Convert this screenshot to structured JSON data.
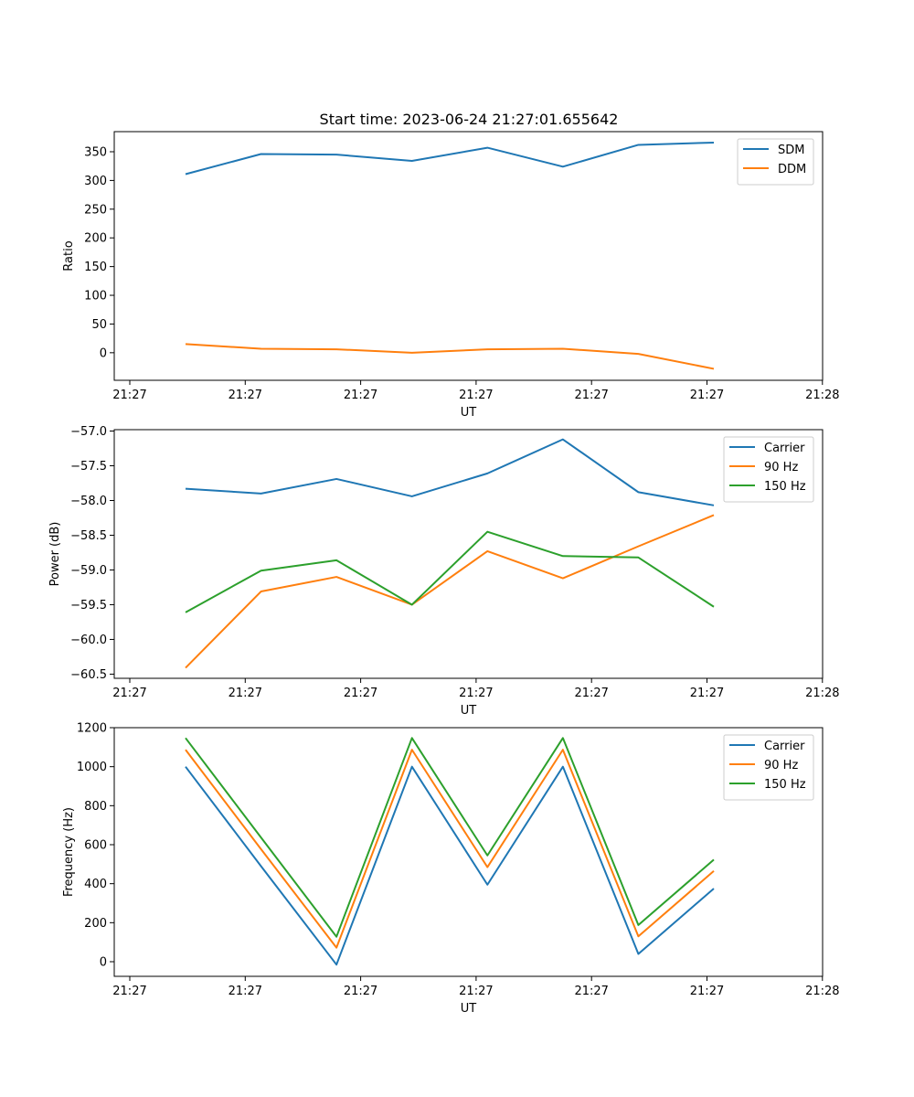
{
  "figure": {
    "title": "Start time: 2023-06-24 21:27:01.655642"
  },
  "colors": {
    "blue": "#1f77b4",
    "orange": "#ff7f0e",
    "green": "#2ca02c"
  },
  "chart_data": [
    {
      "type": "line",
      "title": "Start time: 2023-06-24 21:27:01.655642",
      "xlabel": "UT",
      "ylabel": "Ratio",
      "x_tick_labels": [
        "21:27",
        "21:27",
        "21:27",
        "21:27",
        "21:27",
        "21:27",
        "21:28"
      ],
      "yticks": [
        0,
        50,
        100,
        150,
        200,
        250,
        300,
        350
      ],
      "ylim": [
        -48,
        385
      ],
      "legend": "top-right",
      "x": [
        1,
        2,
        3,
        4,
        5,
        6,
        7,
        8
      ],
      "series": [
        {
          "name": "SDM",
          "color": "#1f77b4",
          "values": [
            311,
            346,
            345,
            334,
            357,
            324,
            362,
            366
          ]
        },
        {
          "name": "DDM",
          "color": "#ff7f0e",
          "values": [
            15,
            7,
            6,
            0,
            6,
            7,
            -2,
            -28
          ]
        }
      ]
    },
    {
      "type": "line",
      "xlabel": "UT",
      "ylabel": "Power (dB)",
      "x_tick_labels": [
        "21:27",
        "21:27",
        "21:27",
        "21:27",
        "21:27",
        "21:27",
        "21:28"
      ],
      "yticks": [
        -60.5,
        -60.0,
        -59.5,
        -59.0,
        -58.5,
        -58.0,
        -57.5,
        -57.0
      ],
      "ytick_labels": [
        "−60.5",
        "−60.0",
        "−59.5",
        "−59.0",
        "−58.5",
        "−58.0",
        "−57.5",
        "−57.0"
      ],
      "ylim": [
        -60.56,
        -56.98
      ],
      "legend": "top-right",
      "x": [
        1,
        2,
        3,
        4,
        5,
        6,
        7,
        8
      ],
      "series": [
        {
          "name": "Carrier",
          "color": "#1f77b4",
          "values": [
            -57.83,
            -57.9,
            -57.69,
            -57.94,
            -57.61,
            -57.12,
            -57.88,
            -58.07
          ]
        },
        {
          "name": "90 Hz",
          "color": "#ff7f0e",
          "values": [
            -60.41,
            -59.31,
            -59.1,
            -59.5,
            -58.73,
            -59.12,
            -58.66,
            -58.21
          ]
        },
        {
          "name": "150 Hz",
          "color": "#2ca02c",
          "values": [
            -59.61,
            -59.01,
            -58.86,
            -59.5,
            -58.45,
            -58.8,
            -58.82,
            -59.53
          ]
        }
      ]
    },
    {
      "type": "line",
      "xlabel": "UT",
      "ylabel": "Frequency (Hz)",
      "x_tick_labels": [
        "21:27",
        "21:27",
        "21:27",
        "21:27",
        "21:27",
        "21:27",
        "21:28"
      ],
      "yticks": [
        0,
        200,
        400,
        600,
        800,
        1000,
        1200
      ],
      "ylim": [
        -75,
        1200
      ],
      "legend": "top-right",
      "x": [
        1,
        2,
        3,
        4,
        5,
        6,
        7,
        8
      ],
      "series": [
        {
          "name": "Carrier",
          "color": "#1f77b4",
          "values": [
            1000,
            490,
            -15,
            1000,
            395,
            1000,
            40,
            375
          ]
        },
        {
          "name": "90 Hz",
          "color": "#ff7f0e",
          "values": [
            1087,
            577,
            72,
            1087,
            485,
            1087,
            130,
            465
          ]
        },
        {
          "name": "150 Hz",
          "color": "#2ca02c",
          "values": [
            1147,
            637,
            128,
            1147,
            545,
            1147,
            188,
            523
          ]
        }
      ]
    }
  ]
}
